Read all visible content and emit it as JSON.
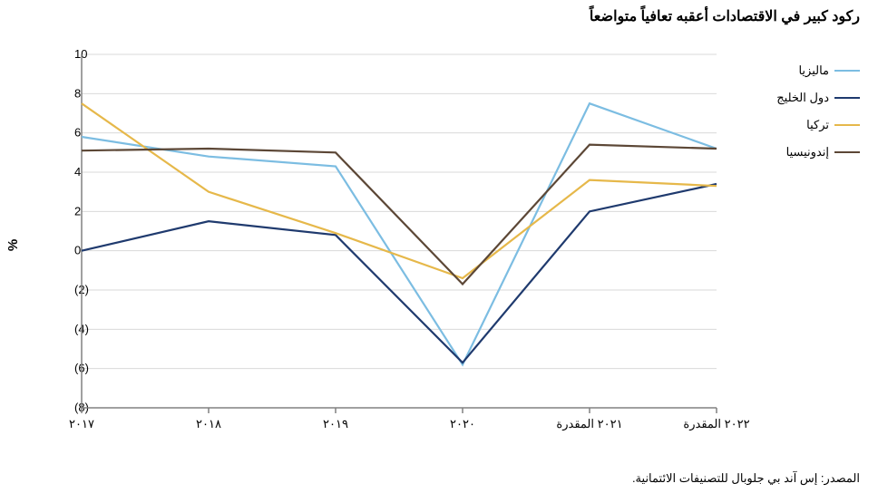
{
  "title": "ركود كبير في الاقتصادات أعقبه تعافياً متواضعاً",
  "title_fontsize": 16,
  "source": "المصدر: إس آند بي جلوبال للتصنيفات الائتمانية.",
  "source_fontsize": 13,
  "y_axis_label": "%",
  "chart": {
    "type": "line",
    "background_color": "#ffffff",
    "grid_color": "#d9d9d9",
    "axis_color": "#808080",
    "x_labels": [
      "٢٠١٧",
      "٢٠١٨",
      "٢٠١٩",
      "٢٠٢٠",
      "٢٠٢١ المقدرة",
      "٢٠٢٢ المقدرة"
    ],
    "y_min": -8,
    "y_max": 10,
    "y_ticks": [
      -8,
      -6,
      -4,
      -2,
      0,
      2,
      4,
      6,
      8,
      10
    ],
    "y_tick_labels": [
      "(8)",
      "(6)",
      "(4)",
      "(2)",
      "0",
      "2",
      "4",
      "6",
      "8",
      "10"
    ],
    "series": [
      {
        "key": "malaysia",
        "label": "ماليزيا",
        "color": "#7cbde2",
        "values": [
          5.8,
          4.8,
          4.3,
          -5.8,
          7.5,
          5.2
        ]
      },
      {
        "key": "gcc",
        "label": "دول الخليج",
        "color": "#1f3a6e",
        "values": [
          0.0,
          1.5,
          0.8,
          -5.7,
          2.0,
          3.4
        ]
      },
      {
        "key": "turkey",
        "label": "تركيا",
        "color": "#e6b84a",
        "values": [
          7.5,
          3.0,
          0.9,
          -1.4,
          3.6,
          3.3
        ]
      },
      {
        "key": "indonesia",
        "label": "إندونيسيا",
        "color": "#5c4736",
        "values": [
          5.1,
          5.2,
          5.0,
          -1.7,
          5.4,
          5.2
        ]
      }
    ],
    "line_width": 2.2,
    "label_fontsize": 13
  }
}
